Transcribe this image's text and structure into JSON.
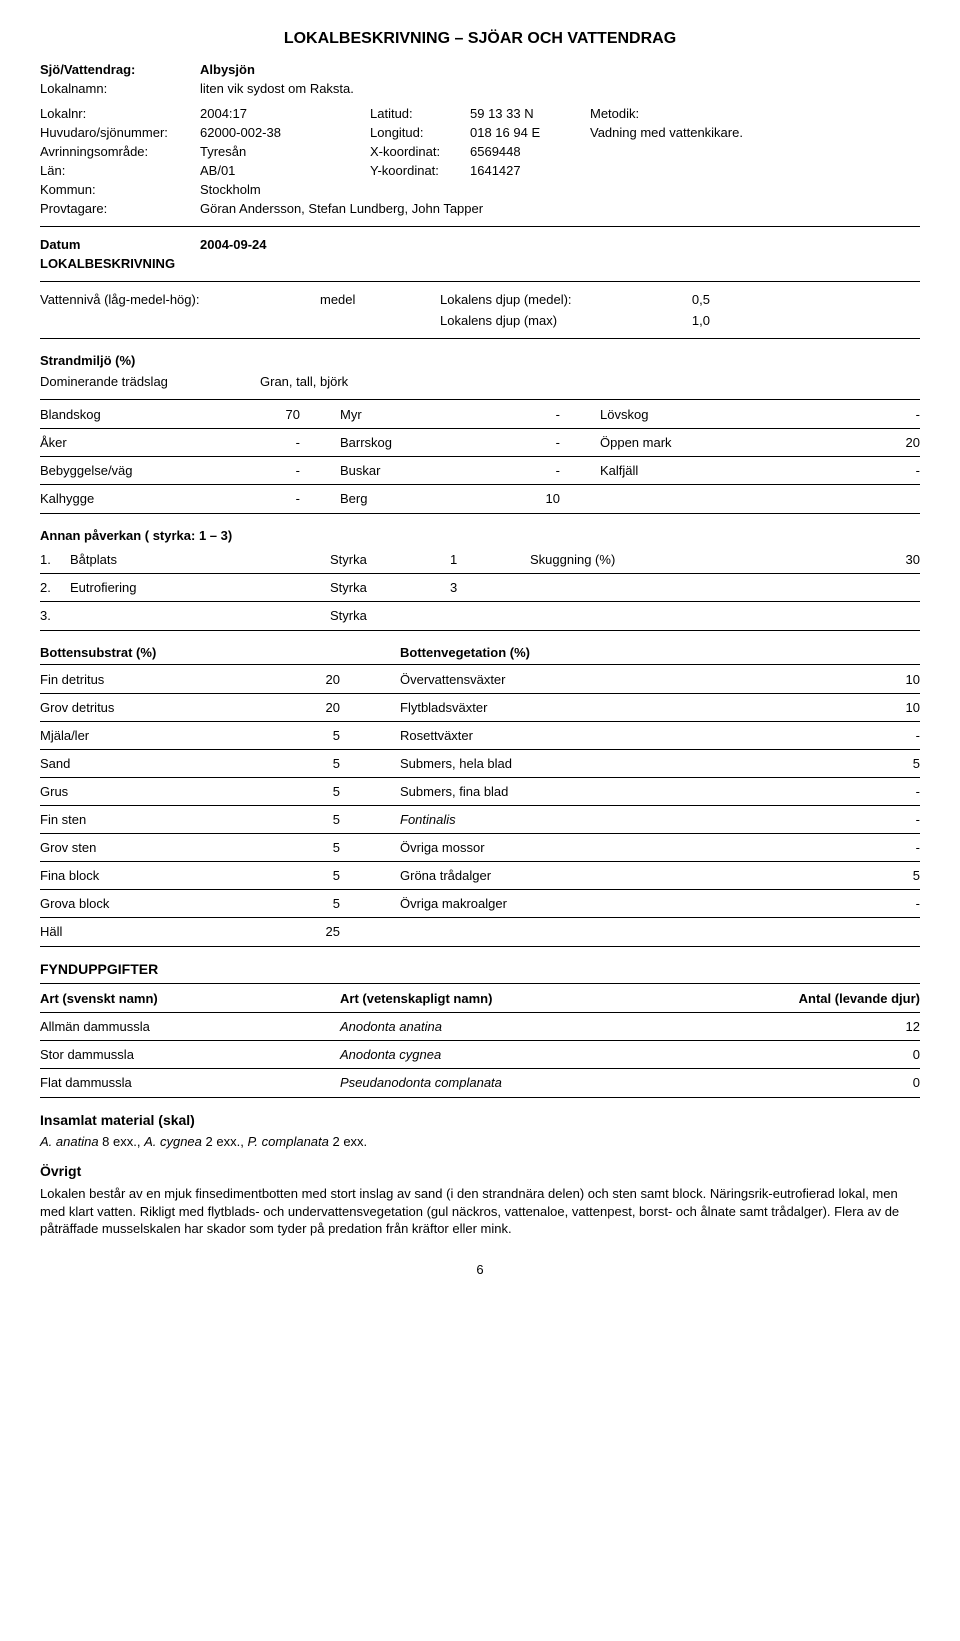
{
  "title": "LOKALBESKRIVNING – SJÖAR OCH VATTENDRAG",
  "header": {
    "sjovattendrag_label": "Sjö/Vattendrag:",
    "sjovattendrag_value": "Albysjön",
    "lokalnamn_label": "Lokalnamn:",
    "lokalnamn_value": "liten vik sydost om Raksta.",
    "lokalnr_label": "Lokalnr:",
    "lokalnr_value": "2004:17",
    "latitud_label": "Latitud:",
    "latitud_value": "59 13 33 N",
    "metodik_label": "Metodik:",
    "metodik_value": "Vadning med vattenkikare.",
    "huvudaro_label": "Huvudaro/sjönummer:",
    "huvudaro_value": "62000-002-38",
    "longitud_label": "Longitud:",
    "longitud_value": "018 16 94 E",
    "avrinning_label": "Avrinningsområde:",
    "avrinning_value": "Tyresån",
    "xkoord_label": "X-koordinat:",
    "xkoord_value": "6569448",
    "lan_label": "Län:",
    "lan_value": "AB/01",
    "ykoord_label": "Y-koordinat:",
    "ykoord_value": "1641427",
    "kommun_label": "Kommun:",
    "kommun_value": "Stockholm",
    "provtagare_label": "Provtagare:",
    "provtagare_value": "Göran Andersson, Stefan Lundberg, John Tapper"
  },
  "datum_label": "Datum",
  "datum_value": "2004-09-24",
  "lokalbeskrivning_label": "LOKALBESKRIVNING",
  "vattenniva_label": "Vattennivå (låg-medel-hög):",
  "vattenniva_value": "medel",
  "lokalens_djup_medel_label": "Lokalens djup (medel):",
  "lokalens_djup_medel_value": "0,5",
  "lokalens_djup_max_label": "Lokalens djup (max)",
  "lokalens_djup_max_value": "1,0",
  "strandmiljo_label": "Strandmiljö (%)",
  "dominerande_label": "Dominerande trädslag",
  "dominerande_value": "Gran, tall, björk",
  "strand_rows": [
    {
      "a_label": "Blandskog",
      "a_val": "70",
      "b_label": "Myr",
      "b_val": "-",
      "c_label": "Lövskog",
      "c_val": "-"
    },
    {
      "a_label": "Åker",
      "a_val": "-",
      "b_label": "Barrskog",
      "b_val": "-",
      "c_label": "Öppen mark",
      "c_val": "20"
    },
    {
      "a_label": "Bebyggelse/väg",
      "a_val": "-",
      "b_label": "Buskar",
      "b_val": "-",
      "c_label": "Kalfjäll",
      "c_val": "-"
    },
    {
      "a_label": "Kalhygge",
      "a_val": "-",
      "b_label": "Berg",
      "b_val": "10",
      "c_label": "",
      "c_val": ""
    }
  ],
  "annan_label": "Annan påverkan ( styrka: 1 – 3)",
  "annan_rows": [
    {
      "n": "1.",
      "name": "Båtplats",
      "styrka_label": "Styrka",
      "styrka_val": "1",
      "sk_label": "Skuggning (%)",
      "sk_val": "30"
    },
    {
      "n": "2.",
      "name": "Eutrofiering",
      "styrka_label": "Styrka",
      "styrka_val": "3",
      "sk_label": "",
      "sk_val": ""
    },
    {
      "n": "3.",
      "name": "",
      "styrka_label": "Styrka",
      "styrka_val": "",
      "sk_label": "",
      "sk_val": ""
    }
  ],
  "bottensubstrat_label": "Bottensubstrat (%)",
  "bottenvegetation_label": "Bottenvegetation (%)",
  "botten_rows": [
    {
      "a_label": "Fin detritus",
      "a_val": "20",
      "b_label": "Övervattensväxter",
      "b_val": "10",
      "b_italic": false
    },
    {
      "a_label": "Grov detritus",
      "a_val": "20",
      "b_label": "Flytbladsväxter",
      "b_val": "10",
      "b_italic": false
    },
    {
      "a_label": "Mjäla/ler",
      "a_val": "5",
      "b_label": "Rosettväxter",
      "b_val": "-",
      "b_italic": false
    },
    {
      "a_label": "Sand",
      "a_val": "5",
      "b_label": "Submers, hela blad",
      "b_val": "5",
      "b_italic": false
    },
    {
      "a_label": "Grus",
      "a_val": "5",
      "b_label": "Submers, fina blad",
      "b_val": "-",
      "b_italic": false
    },
    {
      "a_label": "Fin sten",
      "a_val": "5",
      "b_label": "Fontinalis",
      "b_val": "-",
      "b_italic": true
    },
    {
      "a_label": "Grov sten",
      "a_val": "5",
      "b_label": "Övriga mossor",
      "b_val": "-",
      "b_italic": false
    },
    {
      "a_label": "Fina block",
      "a_val": "5",
      "b_label": "Gröna trådalger",
      "b_val": "5",
      "b_italic": false
    },
    {
      "a_label": "Grova block",
      "a_val": "5",
      "b_label": "Övriga makroalger",
      "b_val": "-",
      "b_italic": false
    },
    {
      "a_label": "Häll",
      "a_val": "25",
      "b_label": "",
      "b_val": "",
      "b_italic": false
    }
  ],
  "fynd_label": "FYNDUPPGIFTER",
  "fynd_header": {
    "a": "Art (svenskt namn)",
    "b": "Art (vetenskapligt namn)",
    "c": "Antal (levande djur)"
  },
  "fynd_rows": [
    {
      "a": "Allmän dammussla",
      "b": "Anodonta anatina",
      "c": "12"
    },
    {
      "a": "Stor dammussla",
      "b": "Anodonta cygnea",
      "c": "0"
    },
    {
      "a": "Flat dammussla",
      "b": "Pseudanodonta complanata",
      "c": "0"
    }
  ],
  "insamlat_label": "Insamlat material (skal)",
  "insamlat_text_prefix": "A. anatina",
  "insamlat_text_mid1": " 8 exx., ",
  "insamlat_text_mid2": "A. cygnea",
  "insamlat_text_mid3": " 2 exx., ",
  "insamlat_text_mid4": "P. complanata",
  "insamlat_text_suffix": " 2 exx.",
  "ovrigt_label": "Övrigt",
  "ovrigt_text": "Lokalen består av en mjuk finsedimentbotten med stort inslag av sand (i den strandnära delen) och sten samt block. Näringsrik-eutrofierad lokal, men med klart vatten. Rikligt med flytblads- och undervattensvegetation (gul näckros, vattenaloe, vattenpest, borst- och ålnate samt trådalger). Flera av de påträffade musselskalen har skador som tyder på predation från kräftor eller mink.",
  "page_number": "6"
}
